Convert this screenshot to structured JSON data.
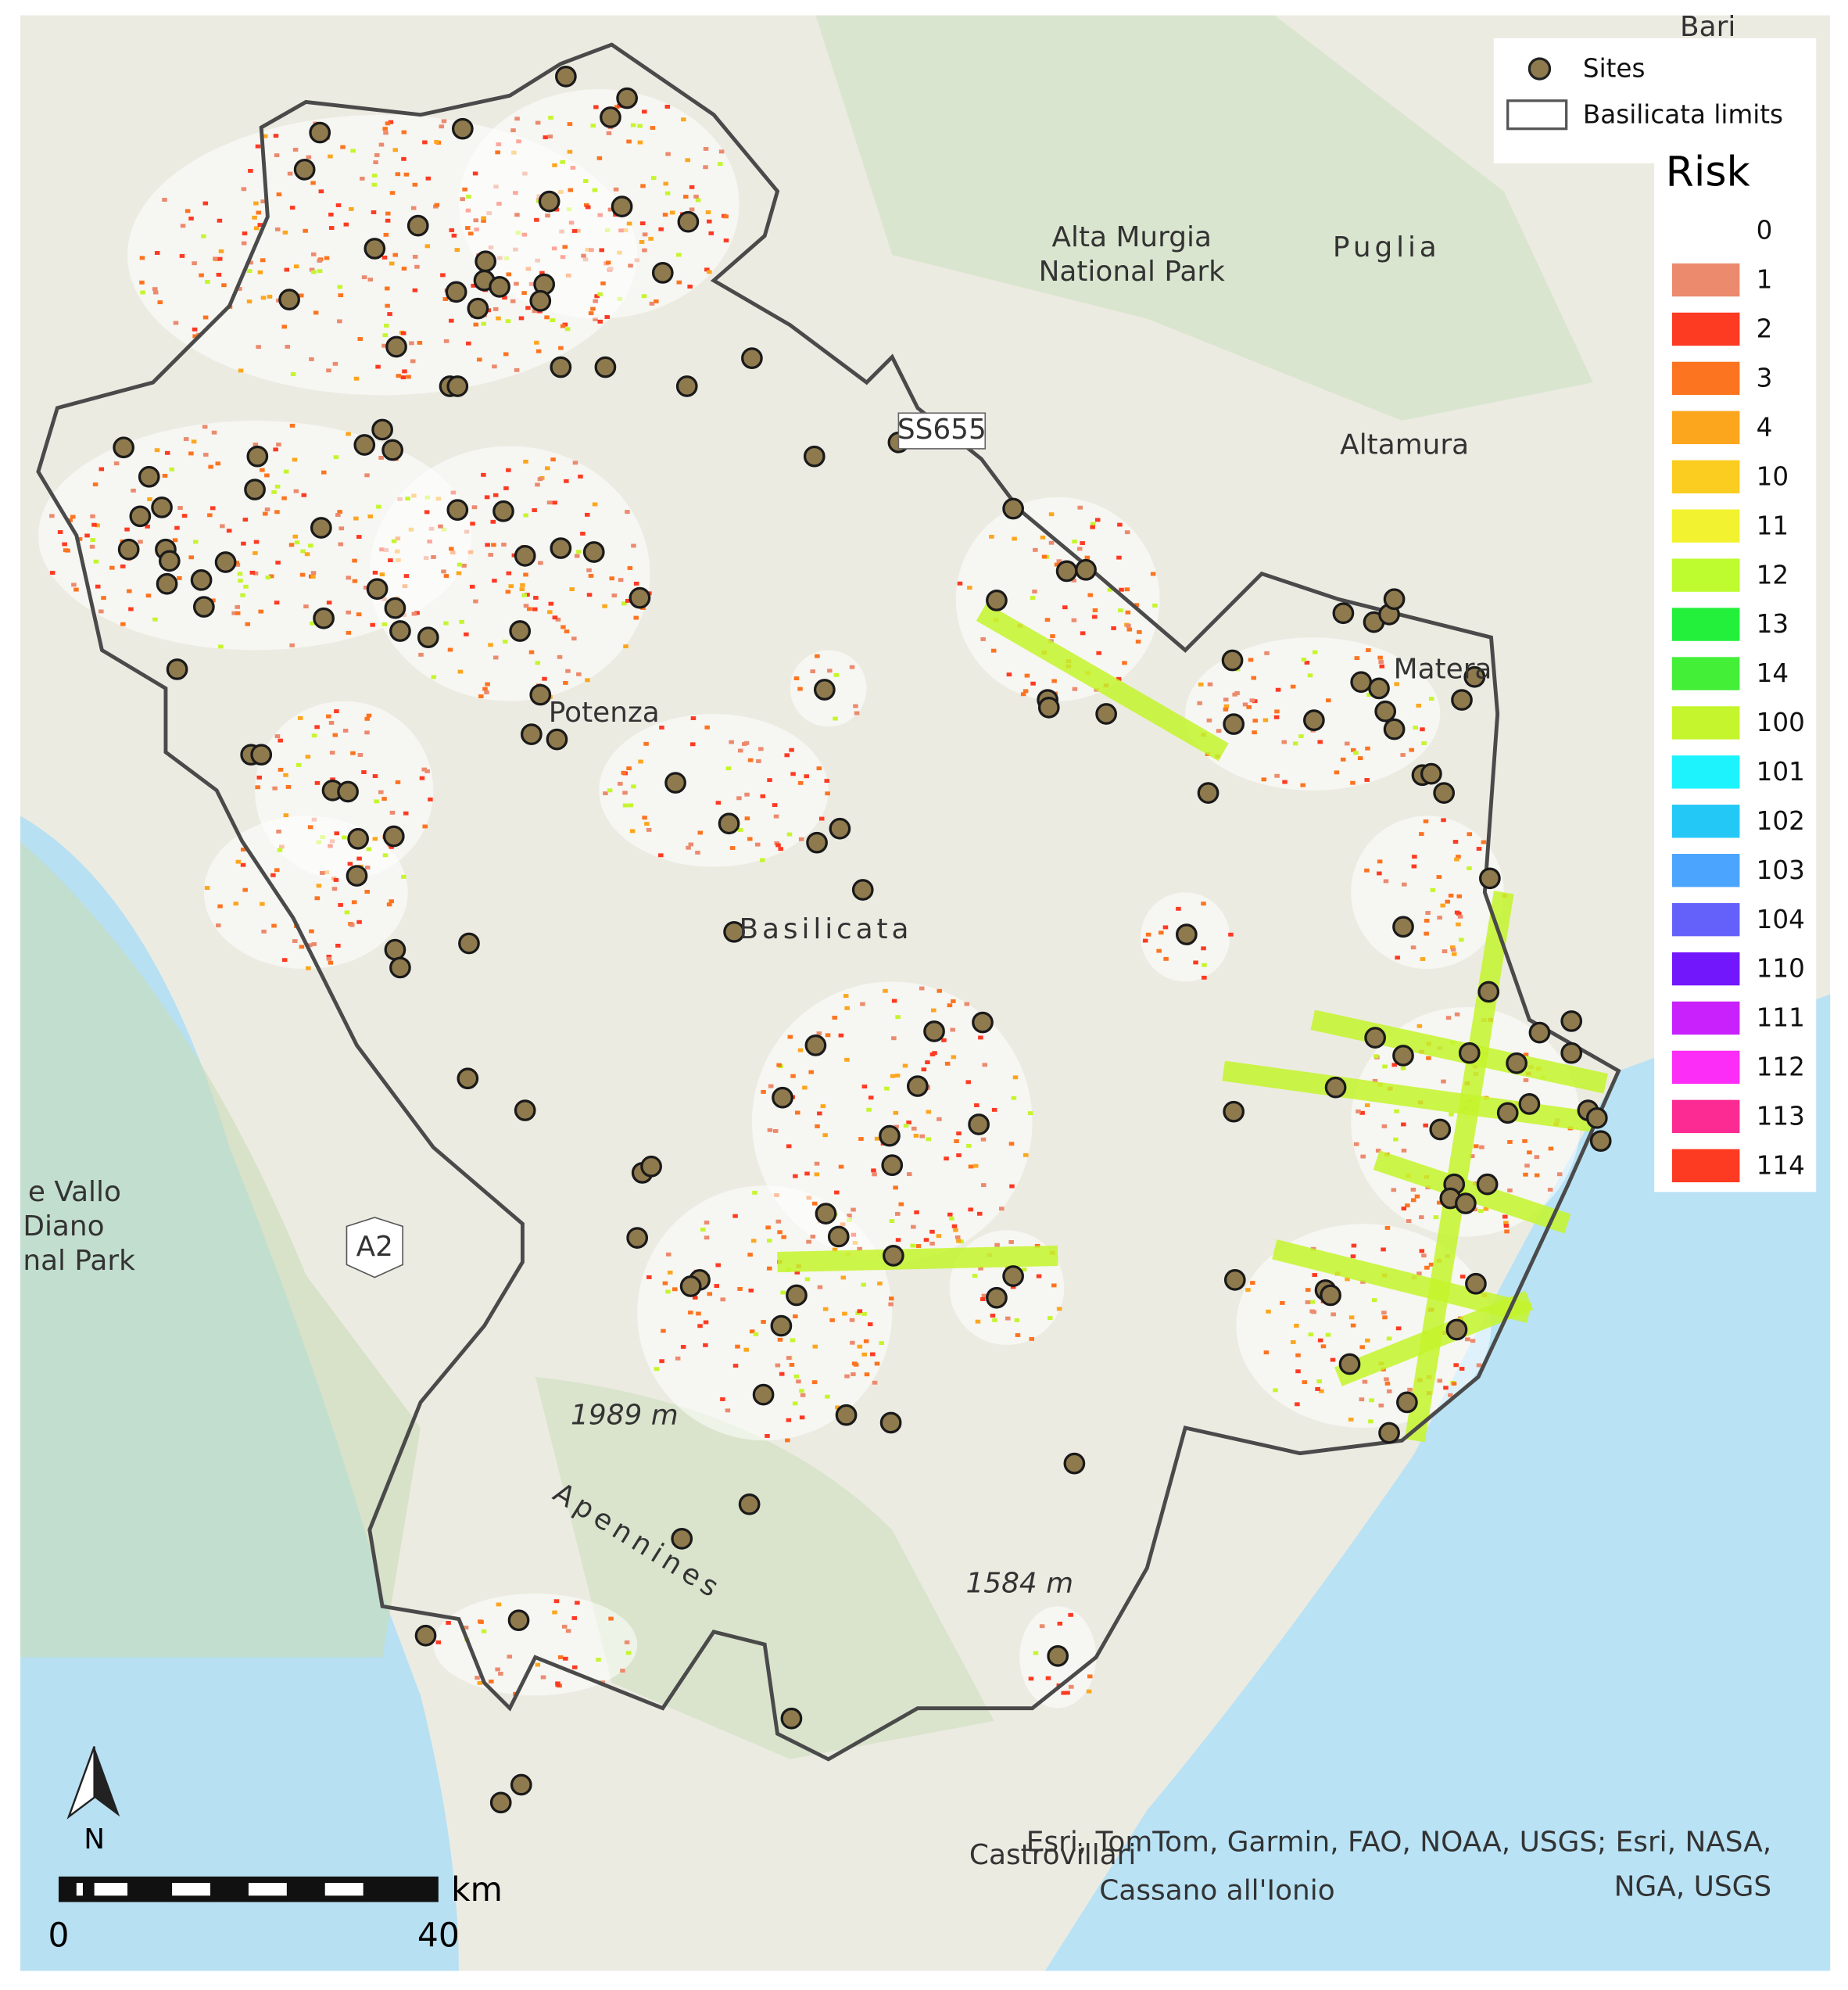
{
  "legend": {
    "sites": "Sites",
    "limits": "Basilicata limits",
    "risk_title": "Risk",
    "risk_classes": [
      {
        "label": 0,
        "color": null
      },
      {
        "label": 1,
        "color": "#ec8a6e"
      },
      {
        "label": 2,
        "color": "#fd3a22"
      },
      {
        "label": 3,
        "color": "#fc7420"
      },
      {
        "label": 4,
        "color": "#fca61e"
      },
      {
        "label": 10,
        "color": "#fbcd20"
      },
      {
        "label": 11,
        "color": "#f2f231"
      },
      {
        "label": 12,
        "color": "#befb2f"
      },
      {
        "label": 13,
        "color": "#23f03a"
      },
      {
        "label": 14,
        "color": "#44ef37"
      },
      {
        "label": 100,
        "color": "#c5f52c"
      },
      {
        "label": 101,
        "color": "#1df3fc"
      },
      {
        "label": 102,
        "color": "#24c8f7"
      },
      {
        "label": 103,
        "color": "#4ba4fd"
      },
      {
        "label": 104,
        "color": "#6461fb"
      },
      {
        "label": 110,
        "color": "#7216fc"
      },
      {
        "label": 111,
        "color": "#c821fc"
      },
      {
        "label": 112,
        "color": "#fc2df7"
      },
      {
        "label": 113,
        "color": "#fb2b93"
      },
      {
        "label": 114,
        "color": "#fd3a22"
      }
    ]
  },
  "places": {
    "bari": "Bari",
    "alta_murgia": [
      "Alta Murgia",
      "National Park"
    ],
    "puglia": "Puglia",
    "altamura": "Altamura",
    "matera": "Matera",
    "potenza": "Potenza",
    "basilicata": "Basilicata",
    "ss655": "SS655",
    "a2": "A2",
    "peak1": "1989 m",
    "apennines": "Apennines",
    "peak2": "1584 m",
    "vallo": [
      "e Vallo",
      "Diano",
      "nal Park"
    ],
    "castrovillari": "Castrovillari",
    "cassano": "Cassano all'Ionio"
  },
  "attribution": [
    "Esri, TomTom, Garmin, FAO, NOAA, USGS; Esri, NASA,",
    "NGA, USGS"
  ],
  "north": "N",
  "scale": {
    "unit": "km",
    "start": "0",
    "end": "40"
  }
}
